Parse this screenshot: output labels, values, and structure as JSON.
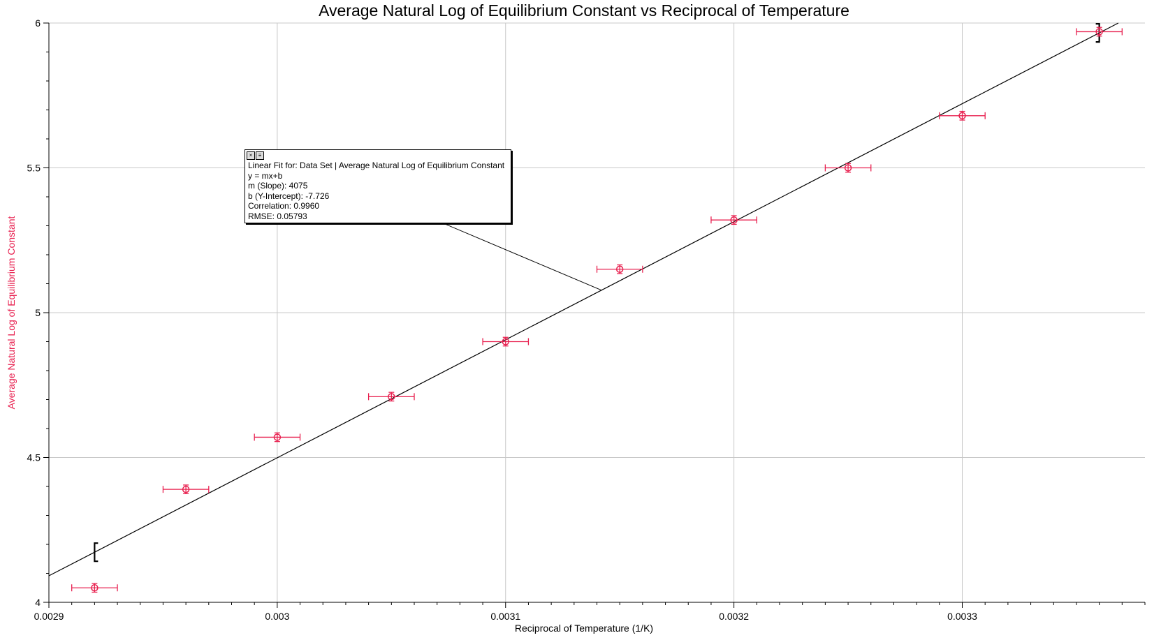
{
  "chart_data": {
    "type": "scatter",
    "title": "Average Natural Log of Equilibrium Constant vs Reciprocal of Temperature",
    "xlabel": "Reciprocal of Temperature (1/K)",
    "ylabel": "Average Natural Log of Equilibrium Constant",
    "xlim": [
      0.0029,
      0.00338
    ],
    "ylim": [
      4,
      6
    ],
    "x_ticks": [
      "0.0029",
      "0.003",
      "0.0031",
      "0.0032",
      "0.0033"
    ],
    "y_ticks": [
      "4",
      "4.5",
      "5",
      "5.5",
      "6"
    ],
    "grid": true,
    "series": [
      {
        "color": "#e8204f",
        "x": [
          0.00292,
          0.00296,
          0.003,
          0.00305,
          0.0031,
          0.00315,
          0.0032,
          0.00325,
          0.0033,
          0.00336
        ],
        "y": [
          4.05,
          4.39,
          4.57,
          4.71,
          4.9,
          5.15,
          5.32,
          5.5,
          5.68,
          5.97
        ],
        "x_error": 1e-05,
        "y_error": 0.015
      }
    ],
    "fit": {
      "type": "linear",
      "color": "#000000",
      "slope": 4075,
      "intercept": -7.726,
      "lines": [
        "Linear Fit for: Data Set | Average Natural Log of Equilibrium Constant",
        "y = mx+b",
        "m (Slope): 4075",
        "b (Y-Intercept): -7.726",
        "Correlation: 0.9960",
        "RMSE: 0.05793"
      ]
    }
  }
}
